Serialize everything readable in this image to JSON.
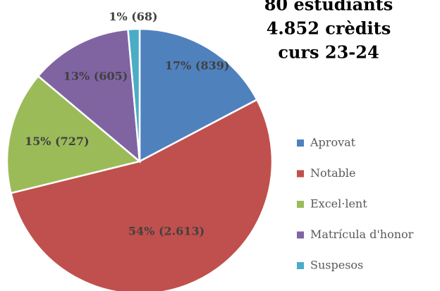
{
  "chart_data": {
    "type": "pie",
    "title": [
      "80 estudiants",
      "4.852 crèdits",
      "curs 23-24"
    ],
    "categories": [
      "Aprovat",
      "Notable",
      "Excel·lent",
      "Matrícula d'honor",
      "Suspesos"
    ],
    "values": [
      839,
      2613,
      727,
      605,
      68
    ],
    "value_labels": [
      "17% (839)",
      "54% (2.613)",
      "15% (727)",
      "13% (605)",
      "1% (68)"
    ],
    "colors": [
      "#4f81bd",
      "#c0504d",
      "#9bbb59",
      "#8064a2",
      "#4bacc6"
    ],
    "legend": "right"
  }
}
